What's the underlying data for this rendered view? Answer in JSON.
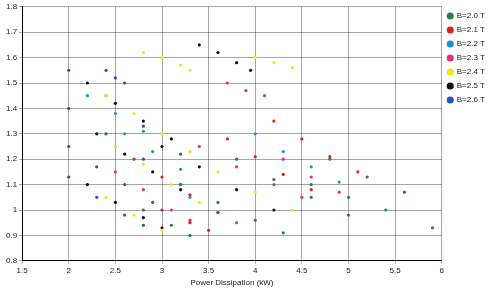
{
  "chart_data": {
    "type": "scatter",
    "x_label": "Power Dissipation (kW)",
    "xlim": [
      1.5,
      6
    ],
    "xticks": [
      1.5,
      2,
      2.5,
      3,
      3.5,
      4,
      4.5,
      5,
      5.5,
      6
    ],
    "ylim": [
      0.8,
      1.8
    ],
    "yticks": [
      0.8,
      0.9,
      1,
      1.1,
      1.2,
      1.3,
      1.4,
      1.5,
      1.6,
      1.7,
      1.8
    ],
    "grid": true,
    "legend": "top-right",
    "marker": ".",
    "series": [
      {
        "name": "B=2.0 T",
        "color": "#2e7d4f",
        "x": [
          4.6,
          5.0,
          5.4,
          5.9,
          3.8,
          4.2,
          4.6,
          5.0,
          4.8,
          5.2,
          5.6,
          3.2,
          3.6,
          4.0,
          4.3,
          2.8,
          3.1,
          3.3
        ],
        "values": [
          1.1,
          1.05,
          1.0,
          0.93,
          1.2,
          1.12,
          1.05,
          0.98,
          1.2,
          1.13,
          1.07,
          1.1,
          1.03,
          0.96,
          0.91,
          1.0,
          0.94,
          0.9
        ]
      },
      {
        "name": "B=2.1 T",
        "color": "#e0201b",
        "x": [
          2.7,
          3.0,
          3.3,
          3.6,
          3.7,
          4.0,
          4.3,
          4.6,
          4.2,
          4.5,
          4.8,
          5.1,
          3.0,
          3.3,
          3.5
        ],
        "values": [
          1.2,
          1.13,
          1.06,
          0.99,
          1.28,
          1.21,
          1.14,
          1.08,
          1.35,
          1.28,
          1.21,
          1.15,
          1.0,
          0.95,
          0.92
        ]
      },
      {
        "name": "B=2.2 T",
        "color": "#1f8fe0",
        "x": [
          2.6,
          2.9,
          3.2,
          3.3,
          3.6,
          3.8,
          4.0,
          4.3,
          4.6,
          4.9,
          2.2,
          2.5,
          2.8
        ],
        "values": [
          1.3,
          1.23,
          1.16,
          1.05,
          0.99,
          0.95,
          1.3,
          1.23,
          1.17,
          1.11,
          1.45,
          1.38,
          1.31
        ]
      },
      {
        "name": "B=2.3 T",
        "color": "#e0307a",
        "x": [
          3.7,
          3.9,
          4.1,
          3.4,
          3.8,
          4.2,
          4.5,
          2.5,
          2.8,
          3.1,
          3.3,
          4.3,
          4.6,
          4.9
        ],
        "values": [
          1.5,
          1.47,
          1.45,
          1.25,
          1.17,
          1.1,
          1.05,
          1.15,
          1.08,
          1.0,
          0.96,
          1.2,
          1.13,
          1.07
        ]
      },
      {
        "name": "B=2.4 T",
        "color": "#f2e51a",
        "x": [
          2.8,
          3.0,
          3.2,
          3.3,
          4.0,
          4.2,
          4.4,
          2.4,
          2.7,
          3.0,
          3.3,
          2.5,
          2.8,
          3.1,
          3.4,
          2.4,
          2.7,
          3.0,
          3.6,
          4.0,
          4.4
        ],
        "values": [
          1.62,
          1.6,
          1.57,
          1.55,
          1.6,
          1.58,
          1.56,
          1.45,
          1.38,
          1.3,
          1.23,
          1.25,
          1.18,
          1.1,
          1.03,
          1.05,
          0.98,
          0.92,
          1.15,
          1.07,
          1.0
        ]
      },
      {
        "name": "B=2.5 T",
        "color": "#111111",
        "x": [
          3.4,
          3.6,
          3.8,
          3.95,
          2.2,
          2.5,
          2.8,
          3.1,
          2.3,
          2.6,
          2.9,
          3.2,
          2.2,
          2.5,
          2.8,
          3.0,
          3.0,
          3.4,
          3.8,
          4.2
        ],
        "values": [
          1.65,
          1.62,
          1.58,
          1.55,
          1.5,
          1.42,
          1.35,
          1.28,
          1.3,
          1.22,
          1.15,
          1.08,
          1.1,
          1.03,
          0.97,
          0.93,
          1.25,
          1.17,
          1.08,
          1.0
        ]
      },
      {
        "name": "B=2.6 T",
        "color": "#2a4fc0",
        "x": [
          2.0,
          2.4,
          2.8,
          3.2,
          2.0,
          2.4,
          2.8,
          3.2,
          2.0,
          2.3,
          2.6,
          2.9,
          2.0,
          2.3,
          2.6,
          2.8,
          2.4,
          2.5,
          2.6
        ],
        "values": [
          1.55,
          1.45,
          1.33,
          1.22,
          1.4,
          1.3,
          1.2,
          1.1,
          1.25,
          1.17,
          1.1,
          1.03,
          1.13,
          1.05,
          0.98,
          0.94,
          1.55,
          1.52,
          1.5
        ]
      }
    ]
  }
}
